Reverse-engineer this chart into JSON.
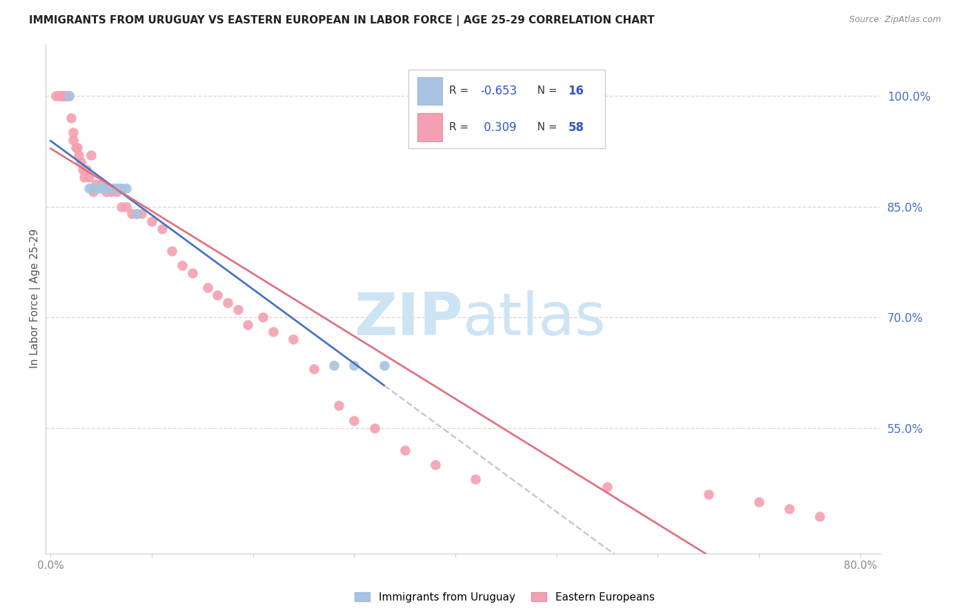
{
  "title": "IMMIGRANTS FROM URUGUAY VS EASTERN EUROPEAN IN LABOR FORCE | AGE 25-29 CORRELATION CHART",
  "source": "Source: ZipAtlas.com",
  "ylabel_label": "In Labor Force | Age 25-29",
  "ytick_labels": [
    "100.0%",
    "85.0%",
    "70.0%",
    "55.0%"
  ],
  "ytick_values": [
    1.0,
    0.85,
    0.7,
    0.55
  ],
  "xtick_values": [
    0.0,
    0.1,
    0.2,
    0.3,
    0.4,
    0.5,
    0.6,
    0.7,
    0.8
  ],
  "xtick_labels": [
    "0.0%",
    "",
    "",
    "",
    "",
    "",
    "",
    "",
    "80.0%"
  ],
  "xlim": [
    -0.005,
    0.82
  ],
  "ylim": [
    0.38,
    1.07
  ],
  "uruguay_color": "#a8c4e0",
  "eastern_color": "#f4a0b0",
  "uruguay_line_color": "#4472c4",
  "eastern_line_color": "#e07080",
  "dashed_line_color": "#c8c8c8",
  "watermark_zip": "ZIP",
  "watermark_atlas": "atlas",
  "watermark_color": "#cde4f5",
  "grid_color": "#e8d0d8",
  "grid_style": "--",
  "background_color": "#ffffff",
  "title_fontsize": 11,
  "axis_label_color": "#4472c4",
  "tick_color": "#888888",
  "uruguay_scatter_x": [
    0.018,
    0.038,
    0.042,
    0.048,
    0.05,
    0.055,
    0.058,
    0.062,
    0.065,
    0.068,
    0.07,
    0.075,
    0.085,
    0.28,
    0.3,
    0.33
  ],
  "uruguay_scatter_y": [
    1.0,
    0.875,
    0.875,
    0.875,
    0.875,
    0.875,
    0.875,
    0.875,
    0.875,
    0.875,
    0.875,
    0.875,
    0.84,
    0.635,
    0.635,
    0.635
  ],
  "eastern_scatter_x": [
    0.005,
    0.008,
    0.01,
    0.01,
    0.012,
    0.013,
    0.015,
    0.016,
    0.018,
    0.018,
    0.02,
    0.022,
    0.022,
    0.025,
    0.026,
    0.028,
    0.03,
    0.032,
    0.033,
    0.035,
    0.038,
    0.04,
    0.042,
    0.045,
    0.05,
    0.055,
    0.06,
    0.065,
    0.07,
    0.075,
    0.08,
    0.085,
    0.09,
    0.1,
    0.11,
    0.12,
    0.13,
    0.14,
    0.155,
    0.165,
    0.175,
    0.185,
    0.195,
    0.21,
    0.22,
    0.24,
    0.26,
    0.285,
    0.3,
    0.32,
    0.35,
    0.38,
    0.42,
    0.55,
    0.65,
    0.7,
    0.73,
    0.76
  ],
  "eastern_scatter_y": [
    1.0,
    1.0,
    1.0,
    1.0,
    1.0,
    1.0,
    1.0,
    1.0,
    1.0,
    1.0,
    0.97,
    0.95,
    0.94,
    0.93,
    0.93,
    0.92,
    0.91,
    0.9,
    0.89,
    0.9,
    0.89,
    0.92,
    0.87,
    0.88,
    0.88,
    0.87,
    0.87,
    0.87,
    0.85,
    0.85,
    0.84,
    0.84,
    0.84,
    0.83,
    0.82,
    0.79,
    0.77,
    0.76,
    0.74,
    0.73,
    0.72,
    0.71,
    0.69,
    0.7,
    0.68,
    0.67,
    0.63,
    0.58,
    0.56,
    0.55,
    0.52,
    0.5,
    0.48,
    0.47,
    0.46,
    0.45,
    0.44,
    0.43
  ]
}
